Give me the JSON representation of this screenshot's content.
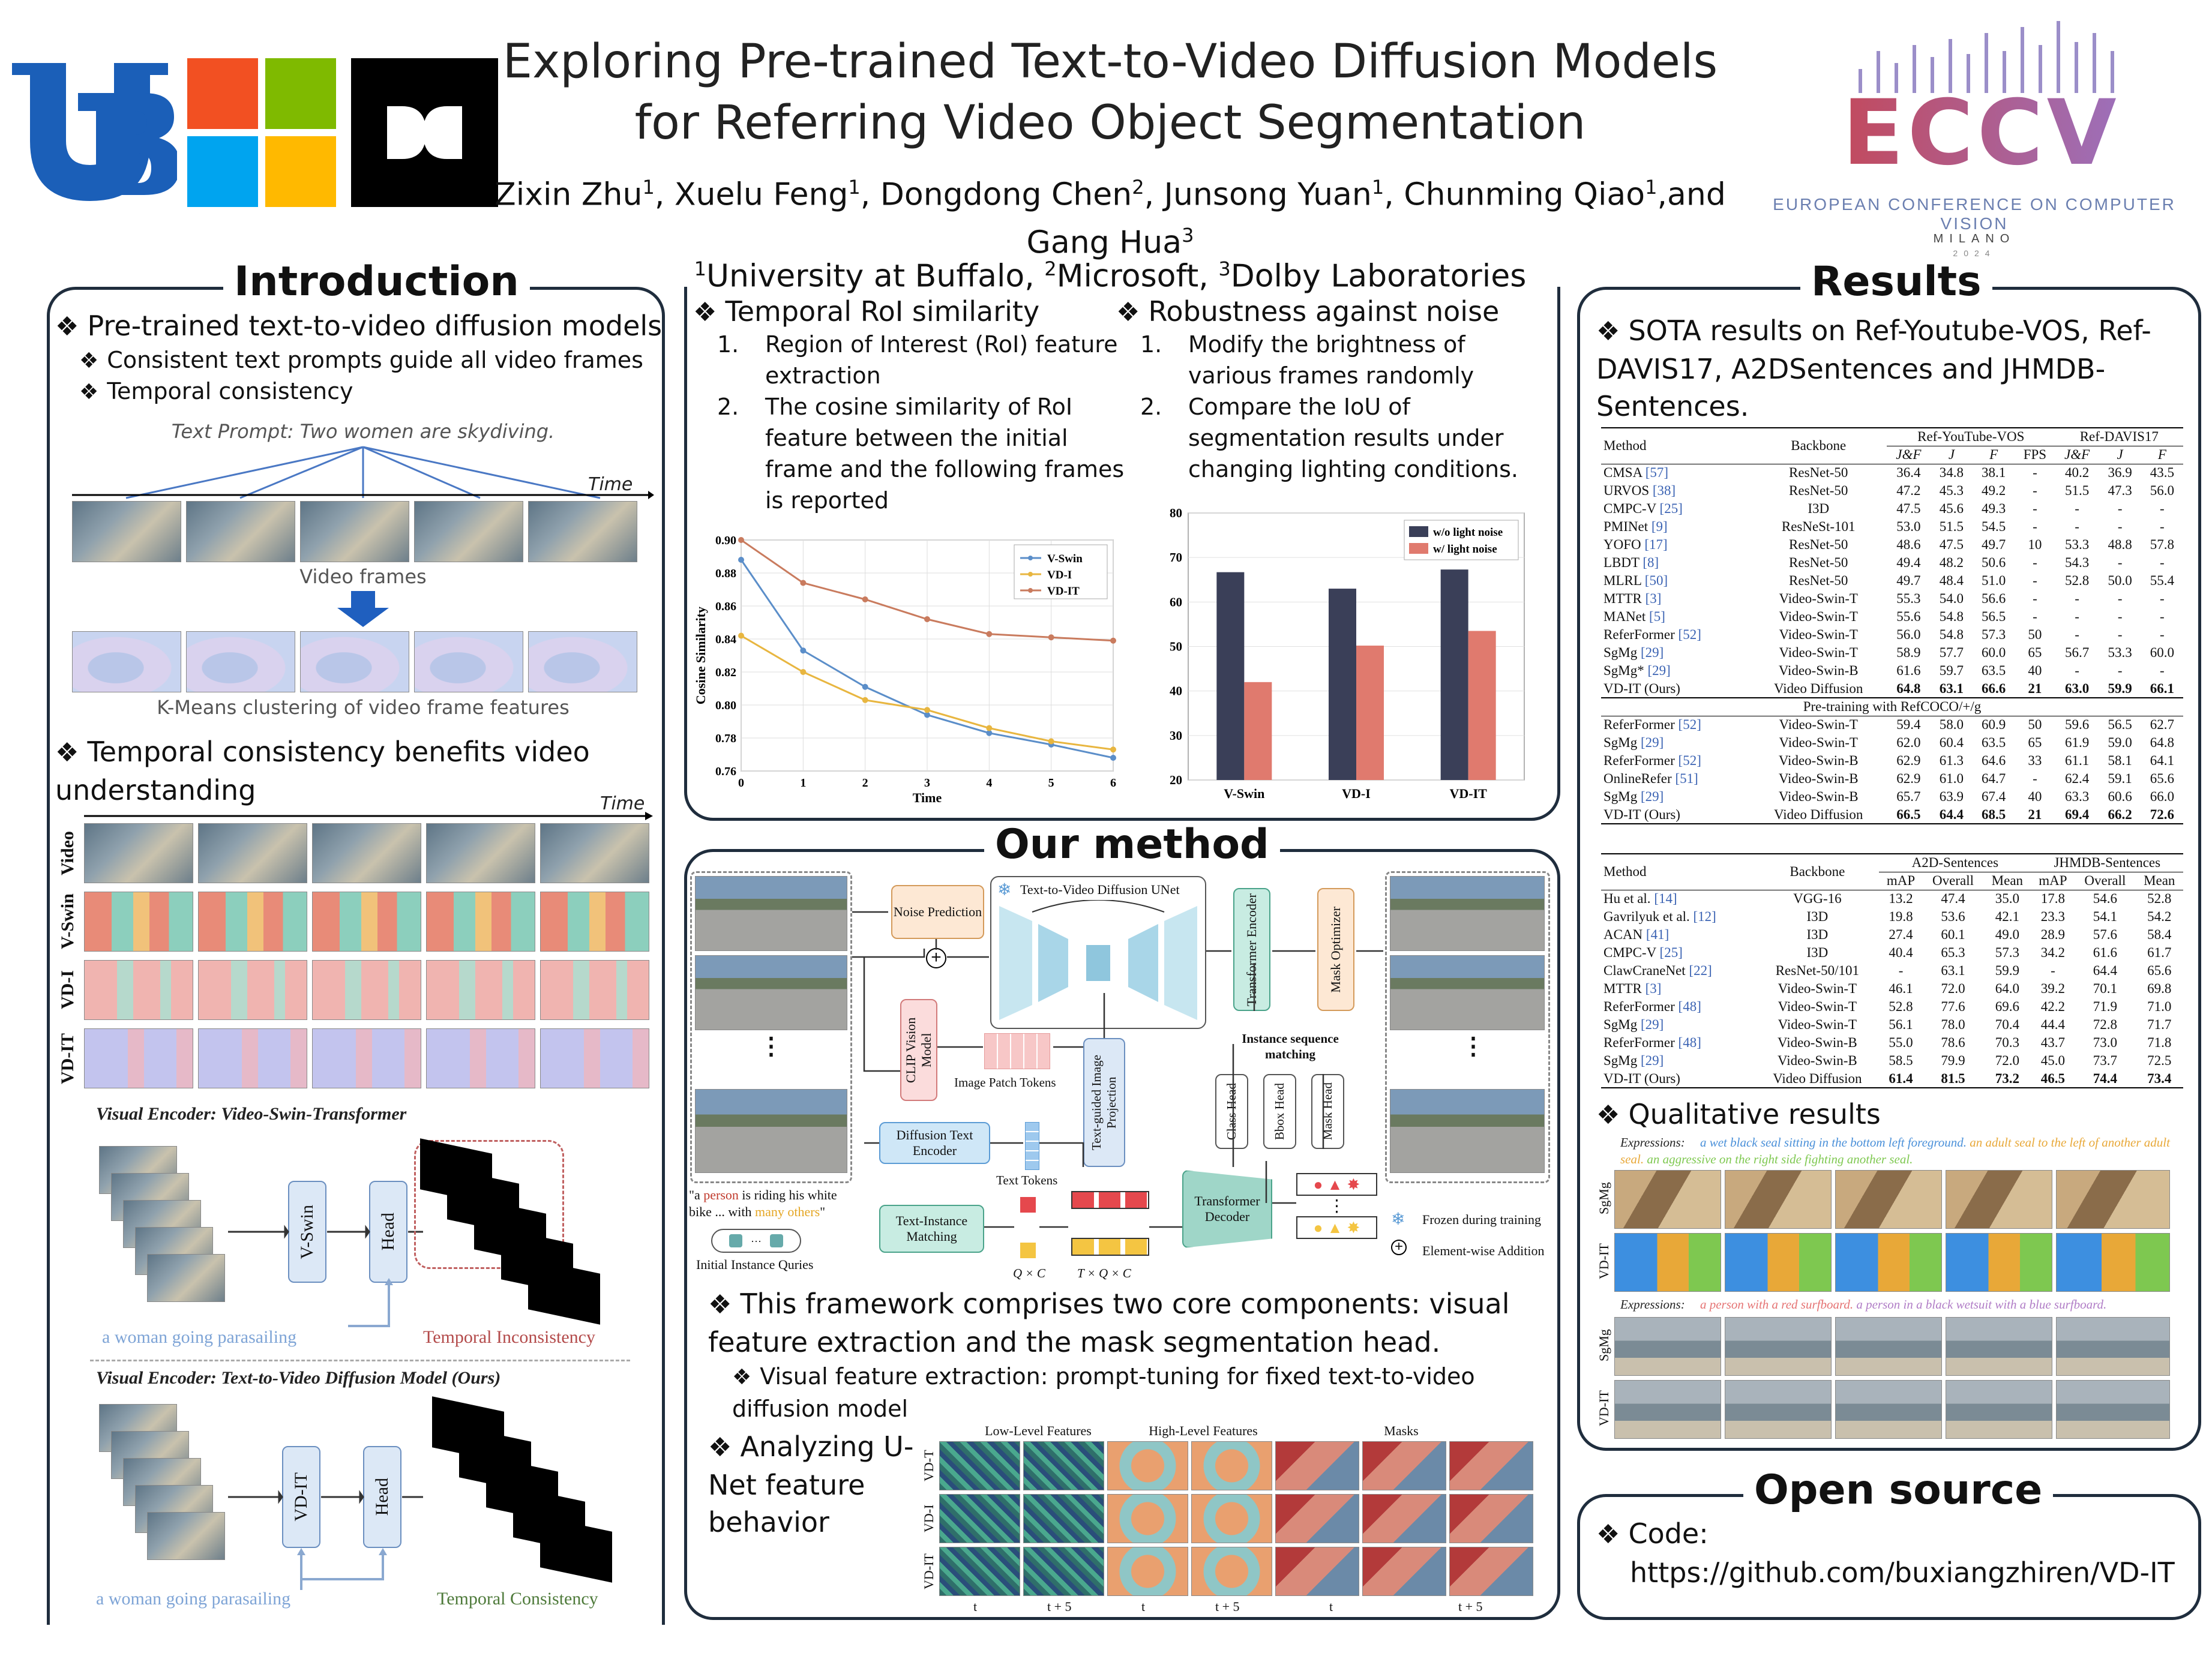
{
  "header": {
    "title_line1": "Exploring Pre-trained Text-to-Video Diffusion Models",
    "title_line2": "for Referring Video Object Segmentation",
    "authors": [
      {
        "name": "Zixin Zhu",
        "aff": "1"
      },
      {
        "name": "Xuelu Feng",
        "aff": "1"
      },
      {
        "name": "Dongdong Chen",
        "aff": "2"
      },
      {
        "name": "Junsong Yuan",
        "aff": "1"
      },
      {
        "name": "Chunming Qiao",
        "aff": "1"
      },
      {
        "name": "Gang Hua",
        "aff": "3"
      }
    ],
    "and_word": ",and",
    "affiliations": [
      {
        "num": "1",
        "name": "University at Buffalo"
      },
      {
        "num": "2",
        "name": "Microsoft"
      },
      {
        "num": "3",
        "name": "Dolby Laboratories"
      }
    ],
    "eccv_logo_text": "ECCV",
    "eccv_subtitle": "EUROPEAN CONFERENCE ON COMPUTER VISION",
    "eccv_city": "MILANO",
    "eccv_year": "2024",
    "colors": {
      "ub_blue": "#1b5fb8",
      "ms_red": "#f25022",
      "ms_green": "#7fba00",
      "ms_blue": "#00a4ef",
      "ms_yellow": "#ffb900"
    }
  },
  "intro": {
    "title": "Introduction",
    "b1": "Pre-trained text-to-video diffusion models",
    "b1a": "Consistent text prompts guide all video frames",
    "b1b": "Temporal consistency",
    "fig_prompt": "Text Prompt: Two women are skydiving.",
    "fig_time": "Time",
    "fig_video_frames": "Video frames",
    "fig_kmeans": "K-Means clustering of video frame features",
    "b2": "Temporal consistency benefits video understanding",
    "fig2_time": "Time",
    "fig2_rows": [
      "Video",
      "V-Swin",
      "VD-I",
      "VD-IT"
    ],
    "enc1_label": "Visual Encoder: Video-Swin-Transformer",
    "enc1_block": "V-Swin",
    "enc1_head": "Head",
    "enc1_text": "a woman going parasailing",
    "enc1_result": "Temporal Inconsistency",
    "enc2_label": "Visual Encoder: Text-to-Video Diffusion Model (Ours)",
    "enc2_block": "VD-IT",
    "enc2_head": "Head",
    "enc2_text": "a woman going parasailing",
    "enc2_result": "Temporal Consistency"
  },
  "roi": {
    "title": "Temporal RoI similarity",
    "items": [
      "Region of Interest (RoI) feature extraction",
      "The cosine similarity of RoI feature between the initial frame and the following frames is reported"
    ]
  },
  "noise": {
    "title": "Robustness against noise",
    "items": [
      "Modify the brightness of various frames randomly",
      "Compare the IoU of segmentation results under changing lighting conditions."
    ]
  },
  "chart_data": [
    {
      "type": "line",
      "xlabel": "Time",
      "ylabel": "Cosine Similarity",
      "x": [
        0,
        1,
        2,
        3,
        4,
        5,
        6
      ],
      "ylim": [
        0.76,
        0.9
      ],
      "yticks": [
        "0.90",
        "0.88",
        "0.86",
        "0.84",
        "0.82",
        "0.80",
        "0.78",
        "0.76"
      ],
      "legend_position": "top-right",
      "series": [
        {
          "name": "V-Swin",
          "color": "#5b8ec9",
          "values": [
            0.888,
            0.833,
            0.811,
            0.794,
            0.783,
            0.776,
            0.768
          ]
        },
        {
          "name": "VD-I",
          "color": "#e8b640",
          "values": [
            0.842,
            0.82,
            0.803,
            0.797,
            0.786,
            0.778,
            0.773
          ]
        },
        {
          "name": "VD-IT",
          "color": "#c97b5e",
          "values": [
            0.9,
            0.874,
            0.864,
            0.852,
            0.843,
            0.841,
            0.839
          ]
        }
      ],
      "grid": true
    },
    {
      "type": "bar",
      "categories": [
        "V-Swin",
        "VD-I",
        "VD-IT"
      ],
      "ylim": [
        20,
        80
      ],
      "yticks": [
        "80",
        "70",
        "60",
        "50",
        "40",
        "30",
        "20"
      ],
      "legend_position": "top-right",
      "series": [
        {
          "name": "w/o light noise",
          "color": "#3a3f58",
          "values": [
            66.7,
            63.0,
            67.3
          ]
        },
        {
          "name": "w/ light noise",
          "color": "#e07a6e",
          "values": [
            42.0,
            50.2,
            53.5
          ]
        }
      ],
      "grid": true
    }
  ],
  "method": {
    "title": "Our method",
    "diag": {
      "noise_pred": "Noise Prediction",
      "unet": "Text-to-Video Diffusion UNet",
      "transformer_encoder": "Transformer Encoder",
      "mask_optimizer": "Mask Optimizer",
      "clip": "CLIP Vision Model",
      "image_patch_tokens": "Image Patch Tokens",
      "text_guided": "Text-guided Image Projection",
      "diffusion_text_encoder": "Diffusion Text Encoder",
      "text_tokens": "Text Tokens",
      "instance_matching": "Instance sequence matching",
      "class_head": "Class Head",
      "bbox_head": "Bbox Head",
      "mask_head": "Mask Head",
      "text_instance_matching": "Text-Instance Matching",
      "transformer_decoder": "Transformer Decoder",
      "prompt_pre": "\"a ",
      "prompt_person": "person",
      "prompt_mid": " is riding his white bike ... with ",
      "prompt_others": "many others",
      "prompt_post": "\"",
      "initial_queries": "Initial Instance Quries",
      "qc": "Q × C",
      "tqc": "T × Q × C",
      "frozen": "Frozen during training",
      "elementwise": "Element-wise Addition"
    },
    "b1": "This framework comprises two core components: visual feature extraction and the mask segmentation head.",
    "b1a": "Visual feature extraction: prompt-tuning for fixed text-to-video diffusion model",
    "b2": "Analyzing U-Net feature behavior",
    "feat_cols": [
      "Low-Level Features",
      "High-Level Features",
      "Masks"
    ],
    "feat_rows": [
      "VD-T",
      "VD-I",
      "VD-IT"
    ],
    "feat_t": [
      "t",
      "t + 5",
      "t",
      "t + 5",
      "t",
      "t + 5"
    ]
  },
  "results": {
    "title": "Results",
    "b1": "SOTA results on Ref-Youtube-VOS, Ref-DAVIS17, A2DSentences and JHMDB-Sentences.",
    "table1": {
      "headers": [
        "Method",
        "Backbone",
        "Ref-YouTube-VOS",
        "Ref-DAVIS17"
      ],
      "sub": [
        "J&F",
        "J",
        "F",
        "FPS",
        "J&F",
        "J",
        "F"
      ],
      "rows": [
        [
          "CMSA",
          "[57]",
          "ResNet-50",
          "36.4",
          "34.8",
          "38.1",
          "-",
          "40.2",
          "36.9",
          "43.5"
        ],
        [
          "URVOS",
          "[38]",
          "ResNet-50",
          "47.2",
          "45.3",
          "49.2",
          "-",
          "51.5",
          "47.3",
          "56.0"
        ],
        [
          "CMPC-V",
          "[25]",
          "I3D",
          "47.5",
          "45.6",
          "49.3",
          "-",
          "-",
          "-",
          "-"
        ],
        [
          "PMINet",
          "[9]",
          "ResNeSt-101",
          "53.0",
          "51.5",
          "54.5",
          "-",
          "-",
          "-",
          "-"
        ],
        [
          "YOFO",
          "[17]",
          "ResNet-50",
          "48.6",
          "47.5",
          "49.7",
          "10",
          "53.3",
          "48.8",
          "57.8"
        ],
        [
          "LBDT",
          "[8]",
          "ResNet-50",
          "49.4",
          "48.2",
          "50.6",
          "-",
          "54.3",
          "-",
          "-"
        ],
        [
          "MLRL",
          "[50]",
          "ResNet-50",
          "49.7",
          "48.4",
          "51.0",
          "-",
          "52.8",
          "50.0",
          "55.4"
        ],
        [
          "MTTR",
          "[3]",
          "Video-Swin-T",
          "55.3",
          "54.0",
          "56.6",
          "-",
          "-",
          "-",
          "-"
        ],
        [
          "MANet",
          "[5]",
          "Video-Swin-T",
          "55.6",
          "54.8",
          "56.5",
          "-",
          "-",
          "-",
          "-"
        ],
        [
          "ReferFormer",
          "[52]",
          "Video-Swin-T",
          "56.0",
          "54.8",
          "57.3",
          "50",
          "-",
          "-",
          "-"
        ],
        [
          "SgMg",
          "[29]",
          "Video-Swin-T",
          "58.9",
          "57.7",
          "60.0",
          "65",
          "56.7",
          "53.3",
          "60.0"
        ],
        [
          "SgMg*",
          "[29]",
          "Video-Swin-B",
          "61.6",
          "59.7",
          "63.5",
          "40",
          "-",
          "-",
          "-"
        ],
        [
          "VD-IT (Ours)",
          "",
          "Video Diffusion",
          "64.8",
          "63.1",
          "66.6",
          "21",
          "63.0",
          "59.9",
          "66.1"
        ]
      ],
      "pretrain_label": "Pre-training with RefCOCO/+/g",
      "rows2": [
        [
          "ReferFormer",
          "[52]",
          "Video-Swin-T",
          "59.4",
          "58.0",
          "60.9",
          "50",
          "59.6",
          "56.5",
          "62.7"
        ],
        [
          "SgMg",
          "[29]",
          "Video-Swin-T",
          "62.0",
          "60.4",
          "63.5",
          "65",
          "61.9",
          "59.0",
          "64.8"
        ],
        [
          "ReferFormer",
          "[52]",
          "Video-Swin-B",
          "62.9",
          "61.3",
          "64.6",
          "33",
          "61.1",
          "58.1",
          "64.1"
        ],
        [
          "OnlineRefer",
          "[51]",
          "Video-Swin-B",
          "62.9",
          "61.0",
          "64.7",
          "-",
          "62.4",
          "59.1",
          "65.6"
        ],
        [
          "SgMg",
          "[29]",
          "Video-Swin-B",
          "65.7",
          "63.9",
          "67.4",
          "40",
          "63.3",
          "60.6",
          "66.0"
        ],
        [
          "VD-IT (Ours)",
          "",
          "Video Diffusion",
          "66.5",
          "64.4",
          "68.5",
          "21",
          "69.4",
          "66.2",
          "72.6"
        ]
      ]
    },
    "table2": {
      "headers": [
        "Method",
        "Backbone",
        "A2D-Sentences",
        "JHMDB-Sentences"
      ],
      "sub": [
        "mAP",
        "Overall",
        "Mean",
        "mAP",
        "Overall",
        "Mean"
      ],
      "rows": [
        [
          "Hu et al.",
          "[14]",
          "VGG-16",
          "13.2",
          "47.4",
          "35.0",
          "17.8",
          "54.6",
          "52.8"
        ],
        [
          "Gavrilyuk et al.",
          "[12]",
          "I3D",
          "19.8",
          "53.6",
          "42.1",
          "23.3",
          "54.1",
          "54.2"
        ],
        [
          "ACAN",
          "[41]",
          "I3D",
          "27.4",
          "60.1",
          "49.0",
          "28.9",
          "57.6",
          "58.4"
        ],
        [
          "CMPC-V",
          "[25]",
          "I3D",
          "40.4",
          "65.3",
          "57.3",
          "34.2",
          "61.6",
          "61.7"
        ],
        [
          "ClawCraneNet",
          "[22]",
          "ResNet-50/101",
          "-",
          "63.1",
          "59.9",
          "-",
          "64.4",
          "65.6"
        ],
        [
          "MTTR",
          "[3]",
          "Video-Swin-T",
          "46.1",
          "72.0",
          "64.0",
          "39.2",
          "70.1",
          "69.8"
        ],
        [
          "ReferFormer",
          "[48]",
          "Video-Swin-T",
          "52.8",
          "77.6",
          "69.6",
          "42.2",
          "71.9",
          "71.0"
        ],
        [
          "SgMg",
          "[29]",
          "Video-Swin-T",
          "56.1",
          "78.0",
          "70.4",
          "44.4",
          "72.8",
          "71.7"
        ],
        [
          "ReferFormer",
          "[48]",
          "Video-Swin-B",
          "55.0",
          "78.6",
          "70.3",
          "43.7",
          "73.0",
          "71.8"
        ],
        [
          "SgMg",
          "[29]",
          "Video-Swin-B",
          "58.5",
          "79.9",
          "72.0",
          "45.0",
          "73.7",
          "72.5"
        ],
        [
          "VD-IT (Ours)",
          "",
          "Video Diffusion",
          "61.4",
          "81.5",
          "73.2",
          "46.5",
          "74.4",
          "73.4"
        ]
      ]
    },
    "b2": "Qualitative results",
    "q1_label": "Expressions:",
    "q1_e1": "a wet black seal sitting in the bottom left foreground.",
    "q1_e2": "an adult seal to the left of another adult seal.",
    "q1_e3": "an aggressive on the right side fighting another seal.",
    "q2_label": "Expressions:",
    "q2_e1": "a person with a red surfboard.",
    "q2_e2": "a person in a black wetsuit with a blue surfboard.",
    "q_rows": [
      "SgMg",
      "VD-IT",
      "SgMg",
      "VD-IT"
    ]
  },
  "opensource": {
    "title": "Open source",
    "code_label": "Code:",
    "url": "https://github.com/buxiangzhiren/VD-IT"
  }
}
